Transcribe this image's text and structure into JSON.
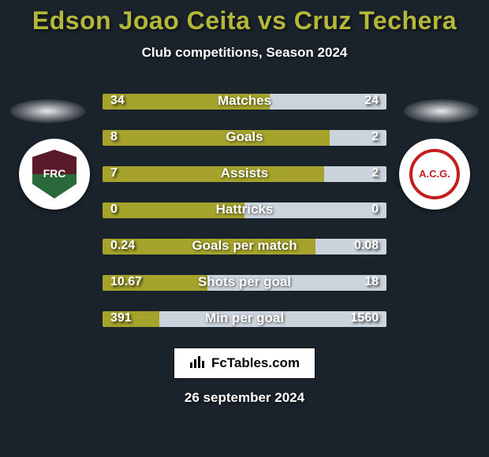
{
  "background_color": "#1a222b",
  "title": {
    "text": "Edson Joao Ceita vs Cruz Techera",
    "color": "#b4b83a",
    "fontsize": 32
  },
  "subtitle": "Club competitions, Season 2024",
  "stats": {
    "bar_color_left": "#a5a32b",
    "bar_color_right": "#cbd4dc",
    "rows": [
      {
        "label": "Matches",
        "left": "34",
        "right": "24",
        "left_pct": 59
      },
      {
        "label": "Goals",
        "left": "8",
        "right": "2",
        "left_pct": 80
      },
      {
        "label": "Assists",
        "left": "7",
        "right": "2",
        "left_pct": 78
      },
      {
        "label": "Hattricks",
        "left": "0",
        "right": "0",
        "left_pct": 50
      },
      {
        "label": "Goals per match",
        "left": "0.24",
        "right": "0.08",
        "left_pct": 75
      },
      {
        "label": "Shots per goal",
        "left": "10.67",
        "right": "18",
        "left_pct": 37
      },
      {
        "label": "Min per goal",
        "left": "391",
        "right": "1560",
        "left_pct": 20
      }
    ]
  },
  "badges": {
    "left": {
      "abbr": "FRC"
    },
    "right": {
      "abbr": "A.C.G."
    }
  },
  "footer": {
    "logo_text": "FcTables.com",
    "date": "26 september 2024"
  }
}
